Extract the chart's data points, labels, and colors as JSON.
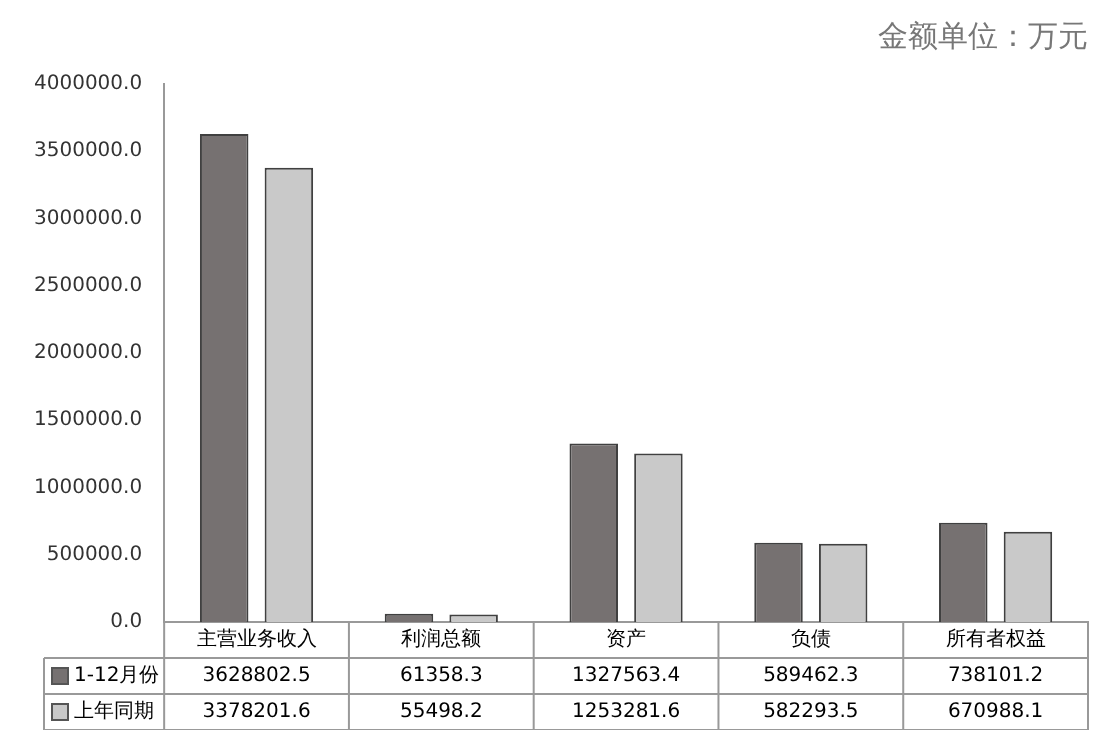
{
  "chart_data": {
    "type": "bar",
    "title": "金额单位：万元",
    "categories": [
      "主营业务收入",
      "利润总额",
      "资产",
      "负债",
      "所有者权益"
    ],
    "series": [
      {
        "name": "1-12月份",
        "color": "#767171",
        "values": [
          3628802.5,
          61358.3,
          1327563.4,
          589462.3,
          738101.2
        ]
      },
      {
        "name": "上年同期",
        "color": "#c9c9c9",
        "values": [
          3378201.6,
          55498.2,
          1253281.6,
          582293.5,
          670988.1
        ]
      }
    ],
    "ylim": [
      0,
      4000000
    ],
    "yticks": [
      {
        "value": 0,
        "label": "0.0"
      },
      {
        "value": 500000,
        "label": "500000.0"
      },
      {
        "value": 1000000,
        "label": "1000000.0"
      },
      {
        "value": 1500000,
        "label": "1500000.0"
      },
      {
        "value": 2000000,
        "label": "2000000.0"
      },
      {
        "value": 2500000,
        "label": "2500000.0"
      },
      {
        "value": 3000000,
        "label": "3000000.0"
      },
      {
        "value": 3500000,
        "label": "3500000.0"
      },
      {
        "value": 4000000,
        "label": "4000000.0"
      }
    ],
    "grid": false,
    "legend": "bottom",
    "data_labels": true
  }
}
